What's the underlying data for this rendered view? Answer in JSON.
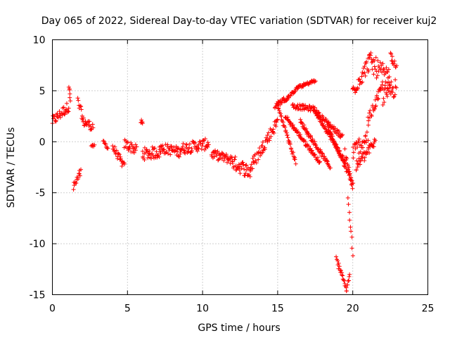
{
  "chart_data": {
    "type": "scatter",
    "title": "Day 065 of 2022, Sidereal Day-to-day VTEC variation (SDTVAR) for receiver kuj2",
    "xlabel": "GPS time / hours",
    "ylabel": "SDTVAR / TECUs",
    "xlim": [
      0,
      25
    ],
    "ylim": [
      -15,
      10
    ],
    "xticks": [
      0,
      5,
      10,
      15,
      20,
      25
    ],
    "yticks": [
      -15,
      -10,
      -5,
      0,
      5,
      10
    ],
    "xtick_labels": [
      "0",
      "5",
      "10",
      "15",
      "20",
      "25"
    ],
    "ytick_labels": [
      "-15",
      "-10",
      "-5",
      "0",
      "5",
      "10"
    ],
    "grid": true,
    "marker": "+",
    "color": "#ff0000",
    "series_segments": [
      {
        "x0": 0.0,
        "x1": 1.1,
        "y0": 2.0,
        "y1": 3.5,
        "spread": 1.0
      },
      {
        "x0": 1.1,
        "x1": 1.2,
        "y0": 5.5,
        "y1": 4.0,
        "spread": 0.5
      },
      {
        "x0": 1.4,
        "x1": 1.9,
        "y0": -4.5,
        "y1": -3.0,
        "spread": 0.9
      },
      {
        "x0": 1.7,
        "x1": 2.0,
        "y0": 4.0,
        "y1": 2.5,
        "spread": 0.8
      },
      {
        "x0": 2.0,
        "x1": 2.7,
        "y0": 2.0,
        "y1": 1.5,
        "spread": 0.9
      },
      {
        "x0": 2.6,
        "x1": 2.8,
        "y0": -0.4,
        "y1": -0.4,
        "spread": 0.2
      },
      {
        "x0": 3.4,
        "x1": 3.7,
        "y0": 0.0,
        "y1": -0.6,
        "spread": 0.4
      },
      {
        "x0": 4.0,
        "x1": 4.8,
        "y0": -0.5,
        "y1": -2.5,
        "spread": 0.8
      },
      {
        "x0": 4.8,
        "x1": 5.6,
        "y0": -0.2,
        "y1": -0.8,
        "spread": 1.0
      },
      {
        "x0": 5.9,
        "x1": 6.0,
        "y0": 2.0,
        "y1": 1.8,
        "spread": 0.4
      },
      {
        "x0": 6.0,
        "x1": 7.2,
        "y0": -1.2,
        "y1": -1.0,
        "spread": 1.2
      },
      {
        "x0": 7.2,
        "x1": 8.5,
        "y0": -0.6,
        "y1": -1.0,
        "spread": 1.0
      },
      {
        "x0": 8.5,
        "x1": 10.4,
        "y0": -0.7,
        "y1": -0.2,
        "spread": 1.1
      },
      {
        "x0": 10.6,
        "x1": 12.0,
        "y0": -1.2,
        "y1": -1.8,
        "spread": 0.9
      },
      {
        "x0": 12.0,
        "x1": 13.2,
        "y0": -2.0,
        "y1": -3.0,
        "spread": 1.4
      },
      {
        "x0": 13.2,
        "x1": 14.0,
        "y0": -2.5,
        "y1": -0.5,
        "spread": 1.2
      },
      {
        "x0": 14.0,
        "x1": 15.0,
        "y0": -0.5,
        "y1": 2.0,
        "spread": 1.2
      },
      {
        "x0": 14.8,
        "x1": 15.5,
        "y0": 3.5,
        "y1": 4.2,
        "spread": 0.5
      },
      {
        "x0": 15.5,
        "x1": 16.3,
        "y0": 4.0,
        "y1": 5.3,
        "spread": 0.3
      },
      {
        "x0": 16.3,
        "x1": 17.5,
        "y0": 5.3,
        "y1": 6.0,
        "spread": 0.3
      },
      {
        "x0": 15.0,
        "x1": 16.2,
        "y0": 3.5,
        "y1": -2.0,
        "spread": 0.4
      },
      {
        "x0": 15.5,
        "x1": 17.8,
        "y0": 2.5,
        "y1": -2.0,
        "spread": 0.4
      },
      {
        "x0": 16.5,
        "x1": 18.5,
        "y0": 2.0,
        "y1": -2.5,
        "spread": 0.4
      },
      {
        "x0": 17.5,
        "x1": 19.5,
        "y0": 3.0,
        "y1": -2.0,
        "spread": 0.5
      },
      {
        "x0": 18.3,
        "x1": 20.0,
        "y0": 1.5,
        "y1": -4.0,
        "spread": 0.5
      },
      {
        "x0": 16.0,
        "x1": 17.5,
        "y0": 3.5,
        "y1": 3.2,
        "spread": 0.5
      },
      {
        "x0": 17.5,
        "x1": 19.3,
        "y0": 3.0,
        "y1": 0.5,
        "spread": 0.5
      },
      {
        "x0": 19.5,
        "x1": 20.0,
        "y0": -1.0,
        "y1": -4.5,
        "spread": 0.6
      },
      {
        "x0": 19.7,
        "x1": 20.0,
        "y0": -5.5,
        "y1": -11.0,
        "spread": 0.6
      },
      {
        "x0": 18.9,
        "x1": 19.6,
        "y0": -11.5,
        "y1": -14.5,
        "spread": 0.5
      },
      {
        "x0": 19.6,
        "x1": 19.8,
        "y0": -14.5,
        "y1": -13.0,
        "spread": 0.8
      },
      {
        "x0": 20.0,
        "x1": 21.0,
        "y0": -1.0,
        "y1": 0.5,
        "spread": 1.6
      },
      {
        "x0": 20.2,
        "x1": 21.5,
        "y0": -2.5,
        "y1": 0.0,
        "spread": 1.0
      },
      {
        "x0": 20.0,
        "x1": 21.0,
        "y0": 5.0,
        "y1": 7.5,
        "spread": 1.5
      },
      {
        "x0": 21.0,
        "x1": 22.5,
        "y0": 8.0,
        "y1": 6.0,
        "spread": 2.0
      },
      {
        "x0": 21.0,
        "x1": 22.0,
        "y0": 2.0,
        "y1": 5.5,
        "spread": 1.0
      },
      {
        "x0": 22.0,
        "x1": 22.9,
        "y0": 4.5,
        "y1": 5.5,
        "spread": 2.0
      },
      {
        "x0": 22.5,
        "x1": 22.9,
        "y0": 8.5,
        "y1": 7.5,
        "spread": 0.8
      }
    ]
  }
}
